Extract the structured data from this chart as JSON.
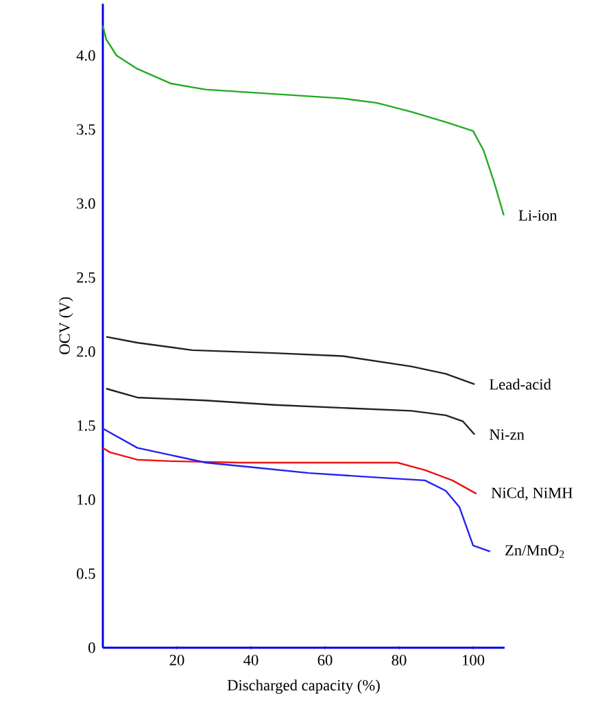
{
  "chart_data": {
    "type": "line",
    "xlabel": "Discharged capacity (%)",
    "ylabel": "OCV (V)",
    "xlim": [
      0,
      108.5
    ],
    "ylim": [
      0,
      4.35
    ],
    "xticks": [
      20,
      40,
      60,
      80,
      100
    ],
    "yticks": [
      0,
      {
        "value": 0.5,
        "label": "0.5"
      },
      {
        "value": 1,
        "label": "1.0"
      },
      {
        "value": 1.5,
        "label": "1.5"
      },
      {
        "value": 2,
        "label": "2.0"
      },
      {
        "value": 2.5,
        "label": "2.5"
      },
      {
        "value": 3,
        "label": "3.0"
      },
      {
        "value": 3.5,
        "label": "3.5"
      },
      {
        "value": 4,
        "label": "4.0"
      }
    ],
    "series": [
      {
        "name": "Li-ion",
        "color": "#22aa22",
        "x": [
          0,
          0.9,
          3.7,
          9.3,
          18.5,
          27.8,
          46.3,
          64.8,
          74,
          83.3,
          92.6,
          100,
          102.8,
          105.6,
          108.3
        ],
        "values": [
          4.2,
          4.11,
          4.0,
          3.91,
          3.81,
          3.77,
          3.74,
          3.71,
          3.68,
          3.62,
          3.55,
          3.49,
          3.36,
          3.15,
          2.92
        ]
      },
      {
        "name": "Lead-acid",
        "color": "#222222",
        "x": [
          0.9,
          9.3,
          24.1,
          46.3,
          64.8,
          83.3,
          92.6,
          100.4
        ],
        "values": [
          2.1,
          2.06,
          2.01,
          1.99,
          1.97,
          1.9,
          1.85,
          1.78
        ]
      },
      {
        "name": "Ni-zn",
        "color": "#222222",
        "x": [
          0.9,
          9.3,
          27.8,
          46.3,
          64.8,
          83.3,
          92.6,
          97.2,
          100.4
        ],
        "values": [
          1.75,
          1.69,
          1.67,
          1.64,
          1.62,
          1.6,
          1.57,
          1.53,
          1.44
        ]
      },
      {
        "name": "NiCd, NiMH",
        "color": "#ee1111",
        "x": [
          0,
          1.9,
          9.3,
          18.5,
          37,
          55.6,
          79.6,
          87,
          94.4,
          100.9
        ],
        "values": [
          1.35,
          1.32,
          1.27,
          1.26,
          1.25,
          1.25,
          1.25,
          1.2,
          1.13,
          1.04
        ]
      },
      {
        "name": "Zn/MnO$_{2}$",
        "color": "#2222ee",
        "x": [
          0,
          9.3,
          18.5,
          27.8,
          40,
          55.6,
          74.1,
          87,
          92.6,
          96.3,
          100,
          104.6
        ],
        "values": [
          1.48,
          1.35,
          1.3,
          1.25,
          1.22,
          1.18,
          1.15,
          1.13,
          1.06,
          0.95,
          0.69,
          0.65
        ]
      }
    ]
  }
}
